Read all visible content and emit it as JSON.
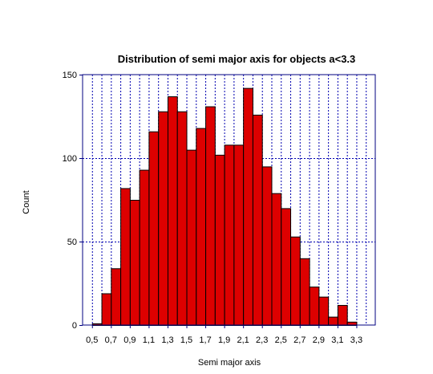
{
  "chart_data": {
    "type": "bar",
    "title": "Distribution of  semi major axis for objects a<3.3",
    "xlabel": "Semi major axis",
    "ylabel": "Count",
    "bin_width": 0.1,
    "bin_starts": [
      0.5,
      0.6,
      0.7,
      0.8,
      0.9,
      1.0,
      1.1,
      1.2,
      1.3,
      1.4,
      1.5,
      1.6,
      1.7,
      1.8,
      1.9,
      2.0,
      2.1,
      2.2,
      2.3,
      2.4,
      2.5,
      2.6,
      2.7,
      2.8,
      2.9,
      3.0,
      3.1,
      3.2,
      3.3
    ],
    "values": [
      1,
      19,
      34,
      82,
      75,
      93,
      116,
      128,
      137,
      128,
      105,
      118,
      131,
      102,
      108,
      108,
      142,
      126,
      95,
      79,
      70,
      53,
      40,
      23,
      17,
      5,
      12,
      2,
      0
    ],
    "xlim": [
      0.4,
      3.5
    ],
    "ylim": [
      0,
      150
    ],
    "x_ticks": [
      "0,5",
      "0,7",
      "0,9",
      "1,1",
      "1,3",
      "1,5",
      "1,7",
      "1,9",
      "2,1",
      "2,3",
      "2,5",
      "2,7",
      "2,9",
      "3,1",
      "3,3"
    ],
    "x_tick_values": [
      0.5,
      0.7,
      0.9,
      1.1,
      1.3,
      1.5,
      1.7,
      1.9,
      2.1,
      2.3,
      2.5,
      2.7,
      2.9,
      3.1,
      3.3
    ],
    "y_ticks": [
      "0",
      "50",
      "100",
      "150"
    ],
    "y_tick_values": [
      0,
      50,
      100,
      150
    ],
    "grid": true,
    "colors": {
      "bar": "#dd0000",
      "grid": "#0000b0",
      "frame": "#000080"
    }
  }
}
